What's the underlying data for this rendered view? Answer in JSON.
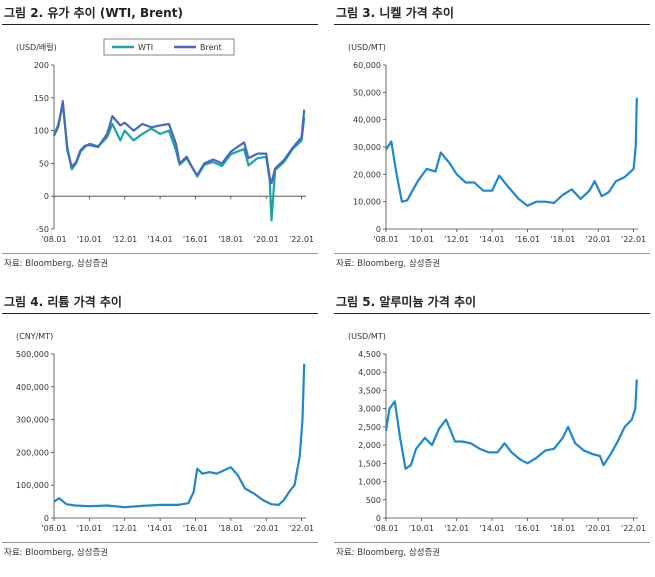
{
  "chart_data": [
    {
      "type": "line",
      "title": "그림 2. 유가 추이 (WTI, Brent)",
      "unit": "(USD/배럴)",
      "source": "자료: Bloomberg, 삼성증권",
      "legend_position": "top",
      "ylim": [
        -50,
        200
      ],
      "yticks": [
        "200",
        "150",
        "100",
        "50",
        "0",
        "-50"
      ],
      "ytick_values": [
        200,
        150,
        100,
        50,
        0,
        -50
      ],
      "xlim": [
        2008.0,
        2022.25
      ],
      "xticks": [
        "'08.01",
        "'10.01",
        "'12.01",
        "'14.01",
        "'16.01",
        "'18.01",
        "'20.01",
        "'22.01"
      ],
      "xtick_values": [
        2008.0,
        2010.0,
        2012.0,
        2014.0,
        2016.0,
        2018.0,
        2020.0,
        2022.0
      ],
      "series": [
        {
          "name": "WTI",
          "color": "#1aa3a8",
          "x": [
            2008.0,
            2008.25,
            2008.5,
            2008.75,
            2009.0,
            2009.25,
            2009.5,
            2009.75,
            2010.0,
            2010.5,
            2011.0,
            2011.3,
            2011.75,
            2012.0,
            2012.5,
            2013.0,
            2013.5,
            2014.0,
            2014.5,
            2014.9,
            2015.1,
            2015.5,
            2015.9,
            2016.1,
            2016.5,
            2017.0,
            2017.5,
            2018.0,
            2018.75,
            2019.0,
            2019.5,
            2020.0,
            2020.2,
            2020.3,
            2020.5,
            2021.0,
            2021.5,
            2022.0,
            2022.15
          ],
          "values": [
            93,
            110,
            140,
            75,
            41,
            50,
            68,
            75,
            80,
            76,
            90,
            110,
            85,
            100,
            85,
            95,
            103,
            95,
            100,
            70,
            48,
            58,
            40,
            30,
            48,
            52,
            46,
            64,
            72,
            47,
            58,
            60,
            25,
            -37,
            40,
            52,
            72,
            85,
            120
          ]
        },
        {
          "name": "Brent",
          "color": "#4a69bd",
          "x": [
            2008.0,
            2008.25,
            2008.5,
            2008.75,
            2009.0,
            2009.25,
            2009.5,
            2009.75,
            2010.0,
            2010.5,
            2011.0,
            2011.3,
            2011.75,
            2012.0,
            2012.5,
            2013.0,
            2013.5,
            2014.0,
            2014.5,
            2014.9,
            2015.1,
            2015.5,
            2015.9,
            2016.1,
            2016.5,
            2017.0,
            2017.5,
            2018.0,
            2018.75,
            2019.0,
            2019.5,
            2020.0,
            2020.2,
            2020.3,
            2020.5,
            2021.0,
            2021.5,
            2022.0,
            2022.15
          ],
          "values": [
            92,
            106,
            145,
            70,
            45,
            52,
            70,
            77,
            78,
            75,
            95,
            122,
            108,
            112,
            100,
            110,
            105,
            108,
            110,
            80,
            50,
            60,
            40,
            32,
            50,
            56,
            50,
            68,
            82,
            58,
            65,
            65,
            28,
            20,
            42,
            55,
            74,
            90,
            132
          ]
        }
      ]
    },
    {
      "type": "line",
      "title": "그림 3. 니켈 가격 추이",
      "unit": "(USD/MT)",
      "source": "자료: Bloomberg, 삼성증권",
      "ylim": [
        0,
        60000
      ],
      "yticks": [
        "60,000",
        "50,000",
        "40,000",
        "30,000",
        "20,000",
        "10,000",
        "0"
      ],
      "ytick_values": [
        60000,
        50000,
        40000,
        30000,
        20000,
        10000,
        0
      ],
      "xlim": [
        2008.0,
        2022.25
      ],
      "xticks": [
        "'08.01",
        "'10.01",
        "'12.01",
        "'14.01",
        "'16.01",
        "'18.01",
        "'20.01",
        "'22.01"
      ],
      "xtick_values": [
        2008.0,
        2010.0,
        2012.0,
        2014.0,
        2016.0,
        2018.0,
        2020.0,
        2022.0
      ],
      "series": [
        {
          "name": "",
          "color": "#1f86d1",
          "x": [
            2008.0,
            2008.3,
            2008.6,
            2008.9,
            2009.2,
            2009.5,
            2009.8,
            2010.3,
            2010.8,
            2011.1,
            2011.6,
            2012.0,
            2012.5,
            2013.0,
            2013.5,
            2014.0,
            2014.4,
            2014.9,
            2015.5,
            2016.0,
            2016.5,
            2017.0,
            2017.5,
            2018.0,
            2018.5,
            2019.0,
            2019.5,
            2019.8,
            2020.2,
            2020.6,
            2021.0,
            2021.5,
            2022.0,
            2022.12,
            2022.18
          ],
          "values": [
            29000,
            32000,
            20000,
            10000,
            10500,
            14000,
            17500,
            22000,
            21000,
            28000,
            24000,
            20000,
            17000,
            17000,
            14000,
            14000,
            19500,
            15500,
            11000,
            8500,
            10000,
            10000,
            9500,
            12500,
            14500,
            11000,
            14000,
            17500,
            12000,
            13500,
            17500,
            19000,
            22000,
            30000,
            48000
          ]
        }
      ]
    },
    {
      "type": "line",
      "title": "그림 4. 리튬 가격 추이",
      "unit": "(CNY/MT)",
      "source": "자료: Bloomberg, 삼성증권",
      "ylim": [
        0,
        500000
      ],
      "yticks": [
        "500,000",
        "400,000",
        "300,000",
        "200,000",
        "100,000",
        "0"
      ],
      "ytick_values": [
        500000,
        400000,
        300000,
        200000,
        100000,
        0
      ],
      "xlim": [
        2008.0,
        2022.25
      ],
      "xticks": [
        "'08.01",
        "'10.01",
        "'12.01",
        "'14.01",
        "'16.01",
        "'18.01",
        "'20.01",
        "'22.01"
      ],
      "xtick_values": [
        2008.0,
        2010.0,
        2012.0,
        2014.0,
        2016.0,
        2018.0,
        2020.0,
        2022.0
      ],
      "series": [
        {
          "name": "",
          "color": "#1f86d1",
          "x": [
            2008.0,
            2008.3,
            2008.7,
            2009.2,
            2010.0,
            2011.0,
            2012.0,
            2013.0,
            2014.0,
            2015.0,
            2015.6,
            2015.9,
            2016.1,
            2016.4,
            2016.8,
            2017.2,
            2017.6,
            2018.0,
            2018.4,
            2018.8,
            2019.3,
            2019.8,
            2020.3,
            2020.7,
            2021.0,
            2021.3,
            2021.6,
            2021.9,
            2022.05,
            2022.15
          ],
          "values": [
            50000,
            60000,
            42000,
            38000,
            36000,
            38000,
            33000,
            37000,
            40000,
            40000,
            45000,
            80000,
            150000,
            135000,
            140000,
            135000,
            145000,
            155000,
            130000,
            90000,
            75000,
            55000,
            42000,
            40000,
            55000,
            80000,
            100000,
            190000,
            300000,
            470000
          ]
        }
      ]
    },
    {
      "type": "line",
      "title": "그림 5. 알루미늄 가격 추이",
      "unit": "(USD/MT)",
      "source": "자료: Bloomberg, 삼성증권",
      "ylim": [
        0,
        4500
      ],
      "yticks": [
        "4,500",
        "4,000",
        "3,500",
        "3,000",
        "2,500",
        "2,000",
        "1,500",
        "1,000",
        "500",
        "0"
      ],
      "ytick_values": [
        4500,
        4000,
        3500,
        3000,
        2500,
        2000,
        1500,
        1000,
        500,
        0
      ],
      "xlim": [
        2008.0,
        2022.25
      ],
      "xticks": [
        "'08.01",
        "'10.01",
        "'12.01",
        "'14.01",
        "'16.01",
        "'18.01",
        "'20.01",
        "'22.01"
      ],
      "xtick_values": [
        2008.0,
        2010.0,
        2012.0,
        2014.0,
        2016.0,
        2018.0,
        2020.0,
        2022.0
      ],
      "series": [
        {
          "name": "",
          "color": "#1f86d1",
          "x": [
            2008.0,
            2008.2,
            2008.5,
            2008.8,
            2009.1,
            2009.4,
            2009.7,
            2010.2,
            2010.6,
            2011.0,
            2011.4,
            2011.9,
            2012.3,
            2012.8,
            2013.3,
            2013.8,
            2014.3,
            2014.7,
            2015.1,
            2015.6,
            2016.0,
            2016.5,
            2017.0,
            2017.5,
            2018.0,
            2018.3,
            2018.7,
            2019.2,
            2019.7,
            2020.1,
            2020.3,
            2020.7,
            2021.1,
            2021.5,
            2021.9,
            2022.1,
            2022.18
          ],
          "values": [
            2400,
            3000,
            3200,
            2200,
            1350,
            1450,
            1900,
            2200,
            2000,
            2450,
            2700,
            2100,
            2100,
            2050,
            1900,
            1800,
            1800,
            2050,
            1800,
            1600,
            1500,
            1650,
            1850,
            1900,
            2200,
            2500,
            2050,
            1850,
            1750,
            1700,
            1450,
            1750,
            2100,
            2500,
            2700,
            3000,
            3800
          ]
        }
      ]
    }
  ]
}
